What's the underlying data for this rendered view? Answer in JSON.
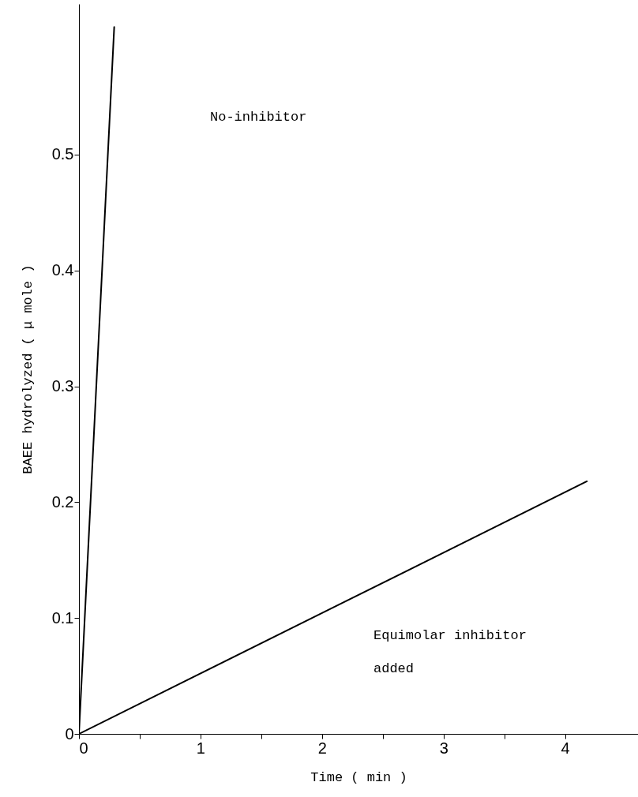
{
  "chart_data": {
    "type": "line",
    "xlabel": "Time ( min )",
    "ylabel": "BAEE hydrolyzed ( μ mole )",
    "series": [
      {
        "color": "#000000",
        "x": [
          0,
          0.29
        ],
        "values": [
          0,
          0.61
        ]
      },
      {
        "color": "#000000",
        "x": [
          0,
          4.18
        ],
        "values": [
          0,
          0.218
        ]
      }
    ],
    "xlim": [
      0,
      4.6
    ],
    "ylim": [
      0,
      0.63
    ],
    "xticks": [
      0,
      {
        "value": 0.5,
        "label": null
      },
      1,
      {
        "value": 1.5,
        "label": null
      },
      2,
      {
        "value": 2.5,
        "label": null
      },
      3,
      {
        "value": 3.5,
        "label": null
      },
      4
    ],
    "yticks": [
      0,
      0.1,
      0.2,
      0.3,
      0.4,
      0.5
    ],
    "grid": false,
    "marker": "none",
    "line_style": "solid",
    "annotations": [
      "No-inhibitor",
      "Equimolar inhibitor",
      "added"
    ]
  }
}
